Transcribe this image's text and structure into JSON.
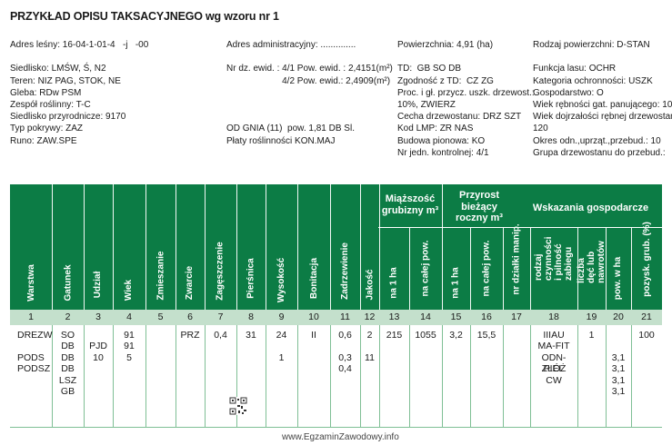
{
  "title": "PRZYKŁAD OPISU TAKSACYJNEGO wg wzoru nr 1",
  "info": {
    "col1": [
      "Adres leśny: 16-04-1-01-4   -j   -00",
      "",
      "Siedlisko: LMŚW, Ś, N2",
      "Teren: NIZ PAG, STOK, NE",
      "Gleba: RDw PSM",
      "Zespół roślinny: T-C",
      "Siedlisko przyrodnicze: 9170",
      "Typ pokrywy: ZAZ",
      "Runo: ZAW.SPE"
    ],
    "col2": [
      "Adres administracyjny: ..............",
      "",
      "Nr dz. ewid. : 4/1 Pow. ewid. : 2,4151(m²)",
      "                      4/2 Pow. ewid.: 2,4909(m²)",
      "",
      "",
      "",
      "OD GNIA (11)  pow. 1,81 DB Sl.",
      "Płaty roślinności KON.MAJ"
    ],
    "col3": [
      "Powierzchnia: 4,91 (ha)",
      "",
      "TD:  GB SO DB",
      "Zgodność z TD:  CZ ZG",
      "Proc. i gł. przycz. uszk. drzewost.:",
      "10%, ZWIERZ",
      "Cecha drzewostanu: DRZ SZT",
      "Kod LMP: ZR NAS",
      "Budowa pionowa: KO",
      "Nr jedn. kontrolnej: 4/1"
    ],
    "col4": [
      "Rodzaj powierzchni: D-STAN",
      "",
      "Funkcja lasu: OCHR",
      "Kategoria ochronności: USZK",
      "Gospodarstwo: O",
      "Wiek rębności gat. panującego: 100",
      "Wiek dojrzałości rębnej drzewostanu:",
      "120",
      "Okres odn.,uprząt.,przebud.: 10",
      "Grupa drzewostanu do przebud.:"
    ]
  },
  "table": {
    "columns": [
      "Warstwa",
      "Gatunek",
      "Udział",
      "Wiek",
      "Zmieszanie",
      "Zwarcie",
      "Zagęszczenie",
      "Pierśnica",
      "Wysokość",
      "Bonitacja",
      "Zadrzewienie",
      "Jakość",
      "na 1 ha",
      "na całej pow.",
      "na 1 ha",
      "na całej pow.",
      "nr działki manip.",
      "rodzaj czynności i pilność zabiegu",
      "liczba dęć lub nawrotów",
      "pow. w ha",
      "pozysk. grub. (%)"
    ],
    "group_miazszosc": "Miąższość grubizny m³",
    "group_przyrost": "Przyrost bieżący roczny m³",
    "group_wskazania": "Wskazania gospodarcze",
    "numbers": [
      "1",
      "2",
      "3",
      "4",
      "5",
      "6",
      "7",
      "8",
      "9",
      "10",
      "11",
      "12",
      "13",
      "14",
      "15",
      "16",
      "17",
      "18",
      "19",
      "20",
      "21"
    ],
    "cells": [
      [
        "DREZW",
        "",
        "PODS",
        "PODSZ"
      ],
      [
        "SO",
        "DB",
        "DB",
        "DB",
        "LSZ",
        "GB"
      ],
      [
        "",
        "PJD",
        "10"
      ],
      [
        "91",
        "91",
        "5"
      ],
      [],
      [
        "PRZ"
      ],
      [
        "0,4"
      ],
      [
        "31"
      ],
      [
        "24",
        "",
        "1"
      ],
      [
        "II"
      ],
      [
        "0,6",
        "",
        "0,3",
        "0,4"
      ],
      [
        "2",
        "",
        "11"
      ],
      [
        "215"
      ],
      [
        "1055"
      ],
      [
        "3,2"
      ],
      [
        "15,5"
      ],
      [],
      [
        "IIIAU",
        "MA-FIT",
        "ODN-ZŁÓŻ",
        "PIEL",
        "CW"
      ],
      [
        "1"
      ],
      [
        "",
        "",
        "3,1",
        "3,1",
        "3,1",
        "3,1"
      ],
      [
        "100"
      ]
    ]
  },
  "watermark": "www.EgzaminZawodowy.info",
  "colors": {
    "header_green": "#0c7c45",
    "number_row": "#c4e0cc",
    "grid_line": "#7fbf95"
  }
}
